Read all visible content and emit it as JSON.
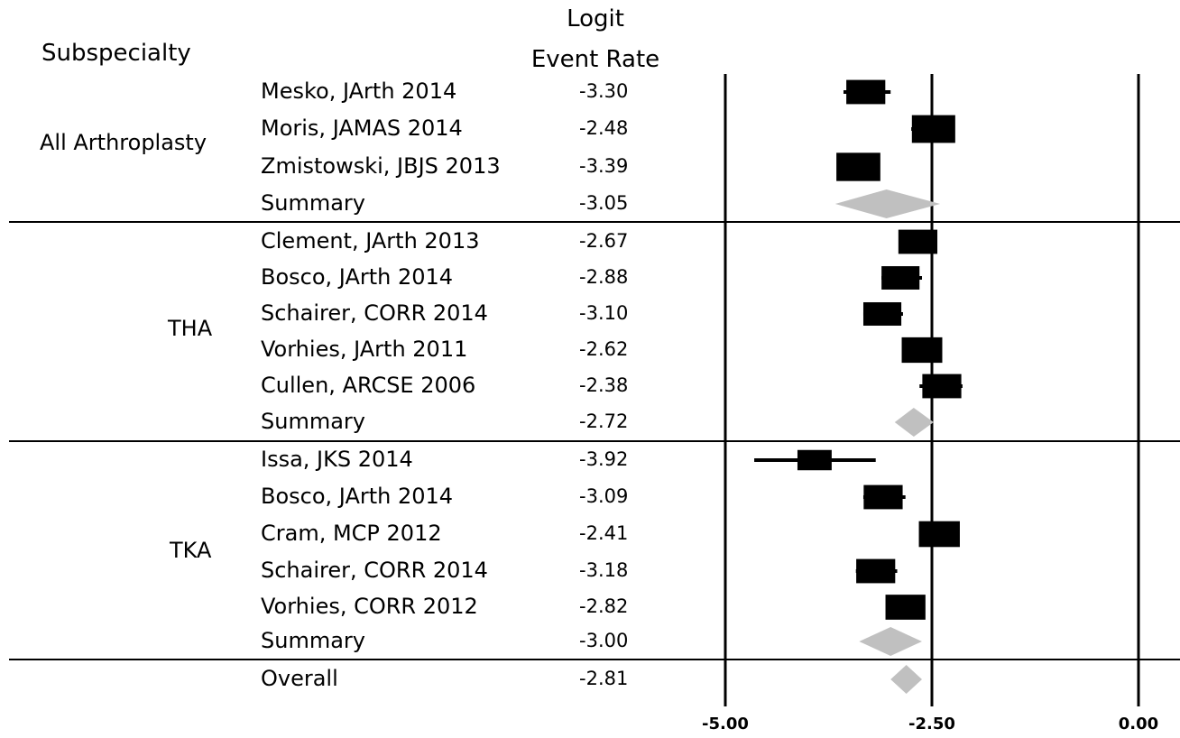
{
  "headers": {
    "subspecialty": "Subspecialty",
    "logit": "Logit",
    "event_rate": "Event Rate"
  },
  "chart_data": {
    "type": "forest",
    "xlim": [
      -5.0,
      0.0
    ],
    "xticks": [
      "-5.00",
      "-2.50",
      "0.00"
    ],
    "reference_line": -2.5,
    "groups": [
      {
        "name": "All Arthroplasty",
        "studies": [
          {
            "label": "Mesko, JArth 2014",
            "value_text": "-3.30",
            "estimate": -3.3,
            "ci": [
              -3.57,
              -3.0
            ],
            "weight": 0.6
          },
          {
            "label": "Moris, JAMAS 2014",
            "value_text": "-2.48",
            "estimate": -2.48,
            "ci": [
              -2.75,
              -2.25
            ],
            "weight": 0.82
          },
          {
            "label": "Zmistowski, JBJS 2013",
            "value_text": "-3.39",
            "estimate": -3.39,
            "ci": [
              -3.6,
              -3.15
            ],
            "weight": 0.85
          },
          {
            "label": "Summary",
            "value_text": "-3.05",
            "estimate": -3.05,
            "ci": [
              -3.67,
              -2.4
            ],
            "summary": true
          }
        ]
      },
      {
        "name": "THA",
        "studies": [
          {
            "label": "Clement, JArth 2013",
            "value_text": "-2.67",
            "estimate": -2.67,
            "ci": [
              -2.87,
              -2.45
            ],
            "weight": 0.6
          },
          {
            "label": "Bosco, JArth 2014",
            "value_text": "-2.88",
            "estimate": -2.88,
            "ci": [
              -3.11,
              -2.62
            ],
            "weight": 0.55
          },
          {
            "label": "Schairer, CORR 2014",
            "value_text": "-3.10",
            "estimate": -3.1,
            "ci": [
              -3.33,
              -2.85
            ],
            "weight": 0.55
          },
          {
            "label": "Vorhies, JArth 2011",
            "value_text": "-2.62",
            "estimate": -2.62,
            "ci": [
              -2.82,
              -2.42
            ],
            "weight": 0.68
          },
          {
            "label": "Cullen, ARCSE 2006",
            "value_text": "-2.38",
            "estimate": -2.38,
            "ci": [
              -2.65,
              -2.13
            ],
            "weight": 0.6
          },
          {
            "label": "Summary",
            "value_text": "-2.72",
            "estimate": -2.72,
            "ci": [
              -2.95,
              -2.48
            ],
            "summary": true
          }
        ]
      },
      {
        "name": "TKA",
        "studies": [
          {
            "label": "Issa, JKS 2014",
            "value_text": "-3.92",
            "estimate": -3.92,
            "ci": [
              -4.65,
              -3.18
            ],
            "weight": 0.36
          },
          {
            "label": "Bosco, JArth 2014",
            "value_text": "-3.09",
            "estimate": -3.09,
            "ci": [
              -3.33,
              -2.82
            ],
            "weight": 0.6
          },
          {
            "label": "Cram, MCP 2012",
            "value_text": "-2.41",
            "estimate": -2.41,
            "ci": [
              -2.62,
              -2.18
            ],
            "weight": 0.7
          },
          {
            "label": "Schairer, CORR 2014",
            "value_text": "-3.18",
            "estimate": -3.18,
            "ci": [
              -3.42,
              -2.92
            ],
            "weight": 0.6
          },
          {
            "label": "Vorhies, CORR 2012",
            "value_text": "-2.82",
            "estimate": -2.82,
            "ci": [
              -3.02,
              -2.62
            ],
            "weight": 0.65
          },
          {
            "label": "Summary",
            "value_text": "-3.00",
            "estimate": -3.0,
            "ci": [
              -3.38,
              -2.62
            ],
            "summary": true
          }
        ]
      }
    ],
    "overall": {
      "label": "Overall",
      "value_text": "-2.81",
      "estimate": -2.81,
      "ci": [
        -3.0,
        -2.62
      ],
      "summary": true
    },
    "colors": {
      "box": "#000000",
      "diamond": "#c0c0c0",
      "line": "#000000"
    }
  }
}
